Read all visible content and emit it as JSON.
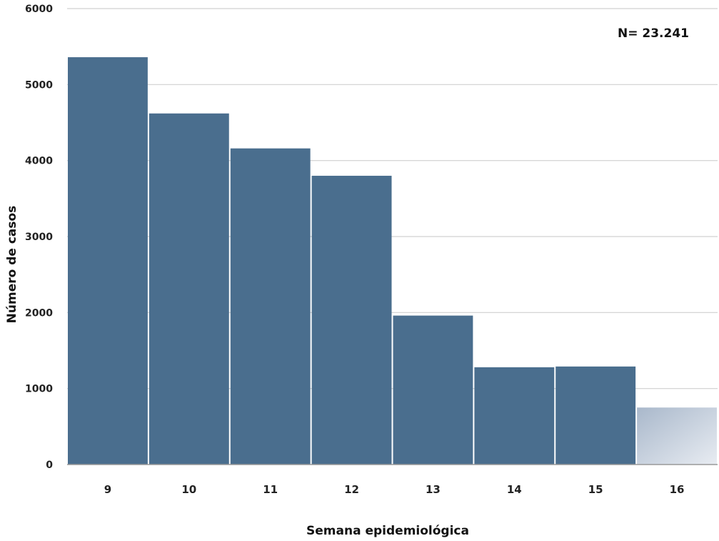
{
  "chart_data": {
    "type": "bar",
    "categories": [
      "9",
      "10",
      "11",
      "12",
      "13",
      "14",
      "15",
      "16"
    ],
    "values": [
      5360,
      4620,
      4160,
      3800,
      1960,
      1280,
      1290,
      750
    ],
    "incomplete_last_bar": true,
    "xlabel": "Semana epidemiológica",
    "ylabel": "Número de casos",
    "ylim": [
      0,
      6000
    ],
    "yticks": [
      "0",
      "1000",
      "2000",
      "3000",
      "4000",
      "5000",
      "6000"
    ],
    "annotation": "N= 23.241",
    "grid": true,
    "colors": {
      "bar": "#4a6e8e",
      "bar_faded_start": "#a9b8cb",
      "bar_faded_end": "#e8ecf2",
      "grid": "#d0d0d0",
      "baseline": "#999999"
    }
  }
}
